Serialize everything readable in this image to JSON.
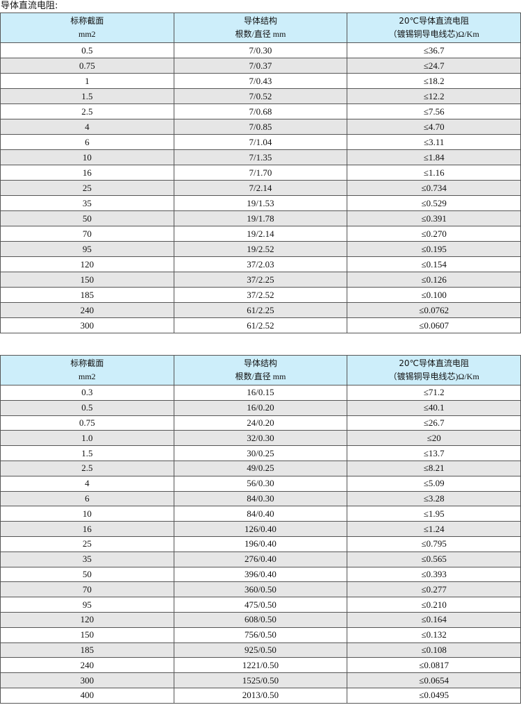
{
  "caption": "导体直流电阻:",
  "headers": {
    "col1_line1": "标称截面",
    "col1_line2": "mm2",
    "col2_line1": "导体结构",
    "col2_line2": "根数/直径 mm",
    "col3_line1": "20℃导体直流电阻",
    "col3_line2": "（镀锡铜导电线芯)Ω/Km"
  },
  "colors": {
    "header_bg": "#cdeefa",
    "alt_row_bg": "#e6e6e6"
  },
  "table1": [
    [
      "0.5",
      "7/0.30",
      "≤36.7"
    ],
    [
      "0.75",
      "7/0.37",
      "≤24.7"
    ],
    [
      "1",
      "7/0.43",
      "≤18.2"
    ],
    [
      "1.5",
      "7/0.52",
      "≤12.2"
    ],
    [
      "2.5",
      "7/0.68",
      "≤7.56"
    ],
    [
      "4",
      "7/0.85",
      "≤4.70"
    ],
    [
      "6",
      "7/1.04",
      "≤3.11"
    ],
    [
      "10",
      "7/1.35",
      "≤1.84"
    ],
    [
      "16",
      "7/1.70",
      "≤1.16"
    ],
    [
      "25",
      "7/2.14",
      "≤0.734"
    ],
    [
      "35",
      "19/1.53",
      "≤0.529"
    ],
    [
      "50",
      "19/1.78",
      "≤0.391"
    ],
    [
      "70",
      "19/2.14",
      "≤0.270"
    ],
    [
      "95",
      "19/2.52",
      "≤0.195"
    ],
    [
      "120",
      "37/2.03",
      "≤0.154"
    ],
    [
      "150",
      "37/2.25",
      "≤0.126"
    ],
    [
      "185",
      "37/2.52",
      "≤0.100"
    ],
    [
      "240",
      "61/2.25",
      "≤0.0762"
    ],
    [
      "300",
      "61/2.52",
      "≤0.0607"
    ]
  ],
  "table2": [
    [
      "0.3",
      "16/0.15",
      "≤71.2"
    ],
    [
      "0.5",
      "16/0.20",
      "≤40.1"
    ],
    [
      "0.75",
      "24/0.20",
      "≤26.7"
    ],
    [
      "1.0",
      "32/0.30",
      "≤20"
    ],
    [
      "1.5",
      "30/0.25",
      "≤13.7"
    ],
    [
      "2.5",
      "49/0.25",
      "≤8.21"
    ],
    [
      "4",
      "56/0.30",
      "≤5.09"
    ],
    [
      "6",
      "84/0.30",
      "≤3.28"
    ],
    [
      "10",
      "84/0.40",
      "≤1.95"
    ],
    [
      "16",
      "126/0.40",
      "≤1.24"
    ],
    [
      "25",
      "196/0.40",
      "≤0.795"
    ],
    [
      "35",
      "276/0.40",
      "≤0.565"
    ],
    [
      "50",
      "396/0.40",
      "≤0.393"
    ],
    [
      "70",
      "360/0.50",
      "≤0.277"
    ],
    [
      "95",
      "475/0.50",
      "≤0.210"
    ],
    [
      "120",
      "608/0.50",
      "≤0.164"
    ],
    [
      "150",
      "756/0.50",
      "≤0.132"
    ],
    [
      "185",
      "925/0.50",
      "≤0.108"
    ],
    [
      "240",
      "1221/0.50",
      "≤0.0817"
    ],
    [
      "300",
      "1525/0.50",
      "≤0.0654"
    ],
    [
      "400",
      "2013/0.50",
      "≤0.0495"
    ]
  ]
}
